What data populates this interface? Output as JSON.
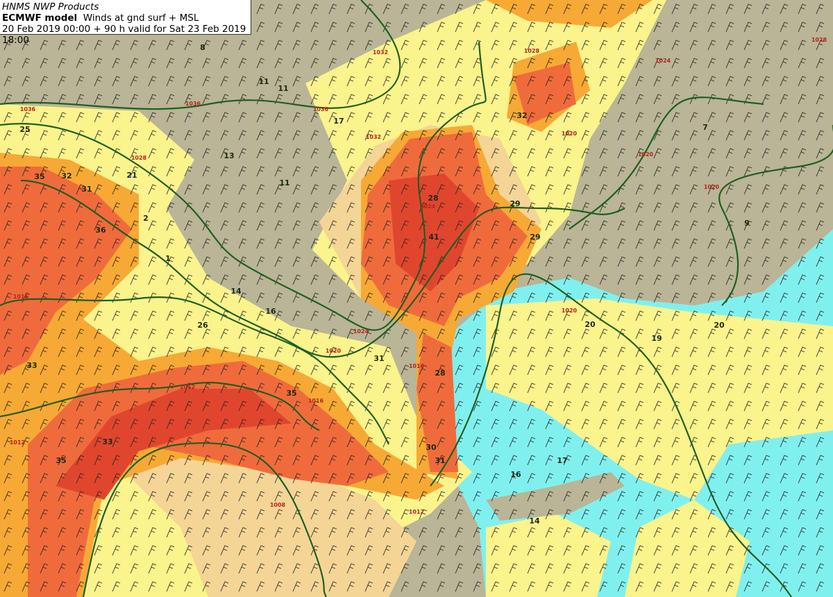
{
  "header": {
    "producer": "HNMS NWP Products",
    "model": "ECMWF model",
    "product": "Winds at gnd surf + MSL",
    "validity": "20 Feb 2019 00:00 + 90 h valid for Sat 23 Feb 2019 18:00"
  },
  "colors": {
    "land_calm": "#b9b596",
    "sea_calm": "#80f0ef",
    "light": "#fbf38c",
    "moderate": "#f4d596",
    "fresh": "#f7a935",
    "strong": "#f06b3c",
    "gale": "#e0462e",
    "isobar": "#1f5f1f",
    "isobar_label": "#b3261e"
  },
  "wind_speed_labels": [
    "8",
    "11",
    "11",
    "17",
    "32",
    "25",
    "35",
    "32",
    "31",
    "21",
    "13",
    "11",
    "28",
    "29",
    "29",
    "41",
    "36",
    "14",
    "16",
    "20",
    "19",
    "20",
    "26",
    "33",
    "31",
    "28",
    "35",
    "33",
    "35",
    "30",
    "31",
    "17",
    "16",
    "14",
    "7",
    "9",
    "2",
    "1"
  ],
  "isobar_labels": [
    "1036",
    "1036",
    "1036",
    "1032",
    "1032",
    "1028",
    "1028",
    "1024",
    "1024",
    "1020",
    "1020",
    "1020",
    "1020",
    "1016",
    "1016",
    "1016",
    "1012",
    "1012",
    "1012",
    "1008",
    "1024",
    "1028",
    "1020"
  ]
}
